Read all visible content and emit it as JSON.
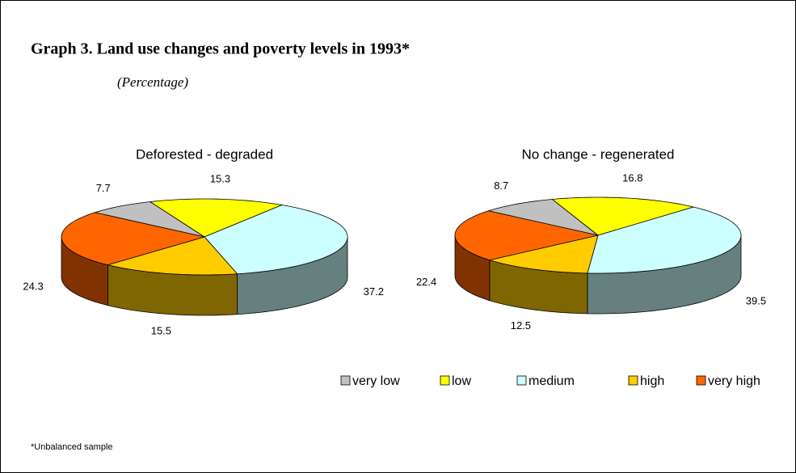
{
  "title": "Graph 3. Land use changes and poverty levels in 1993*",
  "subtitle": "(Percentage)",
  "footnote": "*Unbalanced sample",
  "chart_data": [
    {
      "type": "pie",
      "title": "Deforested - degraded",
      "categories": [
        "very low",
        "low",
        "medium",
        "high",
        "very high"
      ],
      "values": [
        7.7,
        15.3,
        37.2,
        15.5,
        24.3
      ],
      "colors": [
        "#c0c0c0",
        "#ffff00",
        "#ccffff",
        "#ffcc00",
        "#ff6600"
      ],
      "legend": "bottom"
    },
    {
      "type": "pie",
      "title": "No change - regenerated",
      "categories": [
        "very low",
        "low",
        "medium",
        "high",
        "very high"
      ],
      "values": [
        8.7,
        16.8,
        39.5,
        12.5,
        22.4
      ],
      "colors": [
        "#c0c0c0",
        "#ffff00",
        "#ccffff",
        "#ffcc00",
        "#ff6600"
      ],
      "legend": "bottom"
    }
  ]
}
